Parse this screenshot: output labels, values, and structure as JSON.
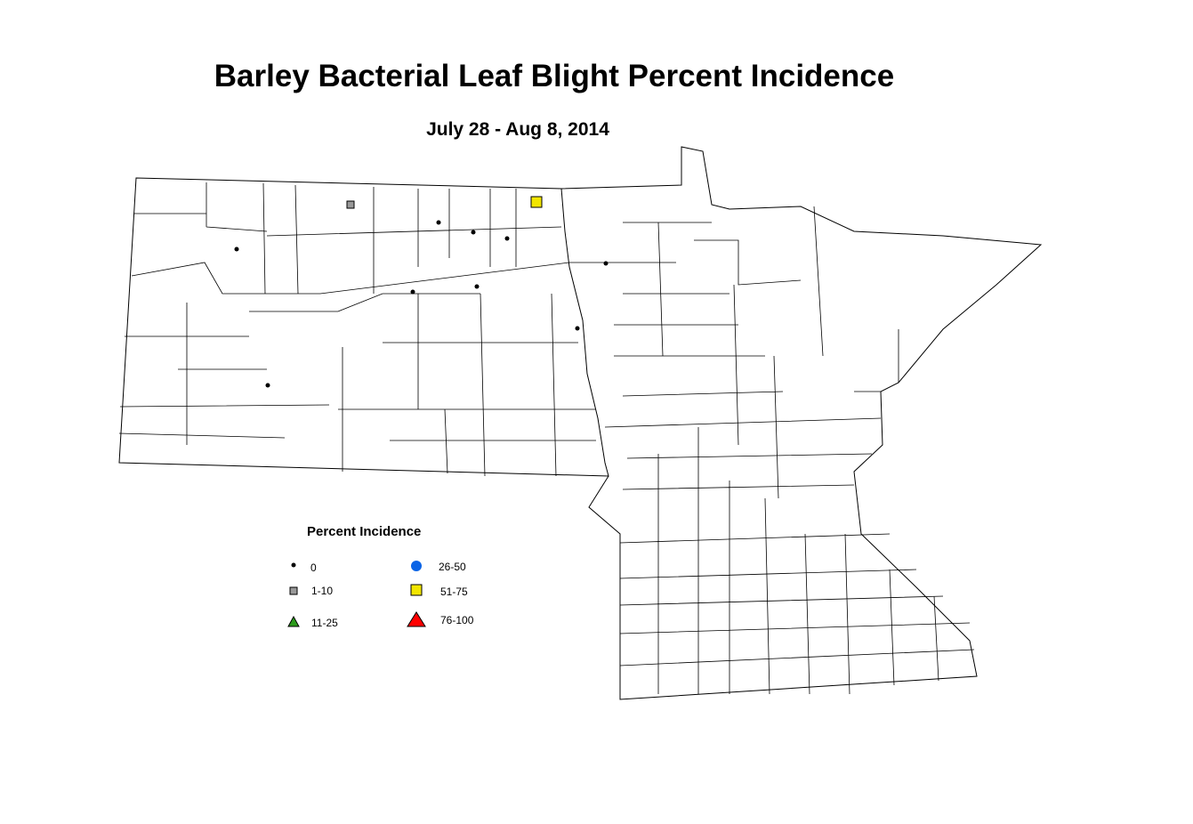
{
  "title": "Barley Bacterial Leaf Blight Percent Incidence",
  "subtitle": "July 28 - Aug 8, 2014",
  "legend": {
    "title": "Percent Incidence",
    "items": [
      {
        "label": "0"
      },
      {
        "label": "1-10"
      },
      {
        "label": "11-25"
      },
      {
        "label": "26-50"
      },
      {
        "label": "51-75"
      },
      {
        "label": "76-100"
      }
    ]
  }
}
